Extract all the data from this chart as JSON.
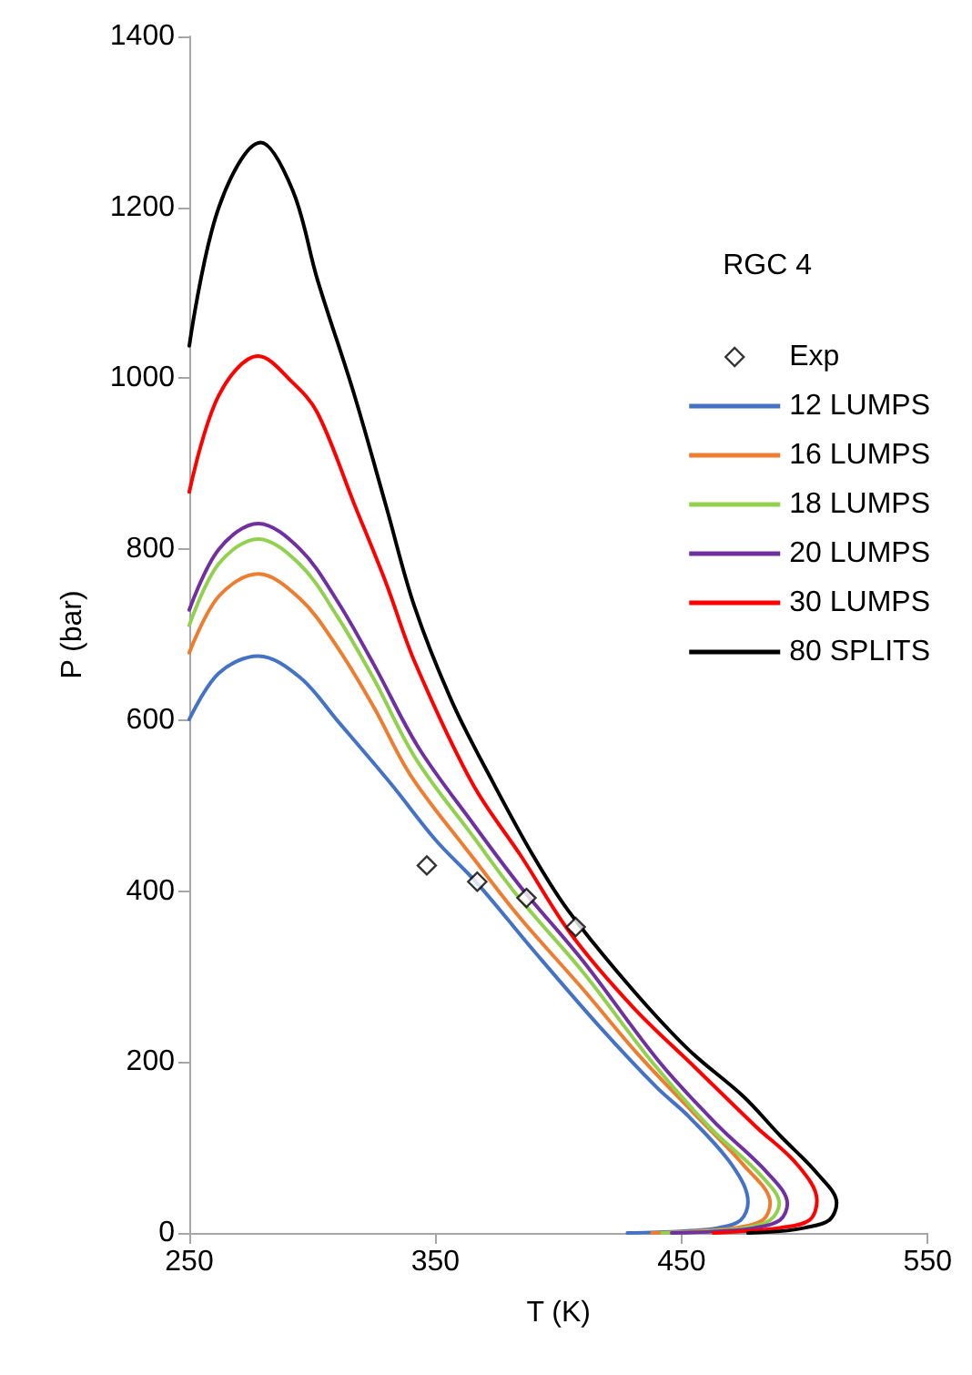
{
  "chart_data": {
    "type": "line",
    "xlabel": "T (K)",
    "ylabel": "P (bar)",
    "legend_title": "RGC 4",
    "xlim": [
      250,
      550
    ],
    "xticks": [
      250,
      350,
      450,
      550
    ],
    "ylim": [
      0,
      1400
    ],
    "yticks": [
      0,
      200,
      400,
      600,
      800,
      1000,
      1200,
      1400
    ],
    "grid": false,
    "legend": "right",
    "marker": "none",
    "line_style": "solid",
    "series": [
      {
        "name": "Exp",
        "type": "scatter",
        "marker": "diamond",
        "color": "#000000",
        "x": [
          346.5,
          367,
          387,
          407
        ],
        "values": [
          430,
          411,
          392,
          358
        ]
      },
      {
        "name": "12 LUMPS",
        "color": "#4472c4",
        "x": [
          250,
          262,
          278,
          295,
          310,
          331.8,
          350,
          367,
          390,
          416.5,
          440,
          453,
          470.6,
          477,
          474,
          465,
          450,
          428
        ],
        "values": [
          601,
          655,
          675,
          650,
          600,
          526,
          460,
          409,
          330,
          242,
          170,
          136,
          79,
          36,
          15,
          6,
          2,
          0
        ]
      },
      {
        "name": "16 LUMPS",
        "color": "#ed7d31",
        "x": [
          250,
          262,
          278,
          295,
          310,
          325,
          340,
          365,
          384,
          410,
          432,
          455,
          475,
          486,
          483,
          472,
          455,
          438
        ],
        "values": [
          679,
          745,
          771,
          742,
          686,
          615,
          535,
          440,
          370,
          285,
          210,
          140,
          80,
          35,
          15,
          6,
          2,
          0
        ]
      },
      {
        "name": "18 LUMPS",
        "color": "#92d050",
        "x": [
          250,
          262,
          278,
          295,
          310,
          325,
          342,
          365,
          384,
          410,
          438,
          462,
          482,
          489.7,
          486,
          476,
          460,
          442
        ],
        "values": [
          711,
          783,
          812,
          782,
          722,
          648,
          555,
          465,
          392,
          305,
          200,
          122,
          68,
          34,
          15,
          6,
          2,
          0
        ]
      },
      {
        "name": "20 LUMPS",
        "color": "#7030a0",
        "x": [
          250,
          262,
          278,
          295,
          310,
          325,
          342.9,
          365,
          384.6,
          410,
          441,
          465,
          485,
          493,
          490,
          480,
          465,
          446
        ],
        "values": [
          729,
          800,
          830,
          800,
          740,
          665,
          569,
          480,
          405,
          318,
          200,
          125,
          70,
          34,
          15,
          6,
          2,
          0
        ]
      },
      {
        "name": "30 LUMPS",
        "color": "#ff0000",
        "x": [
          250,
          262,
          278,
          292,
          302,
          317,
          330,
          341.6,
          365,
          385,
          405,
          430,
          455,
          480,
          497,
          505,
          502,
          490,
          475,
          463
        ],
        "values": [
          867,
          980,
          1026,
          995,
          960,
          853,
          760,
          668,
          526,
          440,
          350,
          265,
          195,
          125,
          80,
          38,
          15,
          6,
          2,
          0
        ]
      },
      {
        "name": "80 SPLITS",
        "color": "#000000",
        "x": [
          250,
          262,
          279,
          292,
          302,
          317,
          330,
          341.6,
          357,
          373.6,
          390,
          404,
          430,
          453,
          475,
          490,
          505,
          513,
          510,
          500,
          490,
          477
        ],
        "values": [
          1038,
          1200,
          1276,
          1220,
          1116,
          981,
          850,
          732,
          620,
          526,
          440,
          377,
          285,
          214,
          160,
          114,
          70,
          35,
          15,
          6,
          2,
          0
        ]
      }
    ]
  }
}
